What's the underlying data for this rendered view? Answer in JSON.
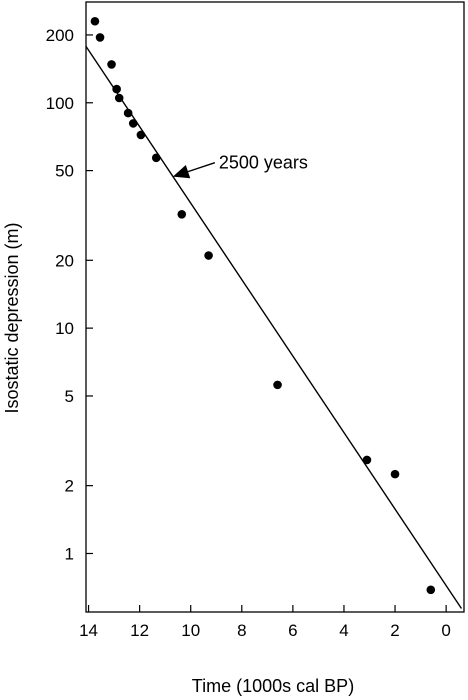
{
  "chart_data": {
    "type": "scatter",
    "title": "",
    "xlabel": "Time (1000s cal BP)",
    "ylabel": "Isostatic depression (m)",
    "xlim": [
      14.1,
      -0.7
    ],
    "x_reversed": true,
    "x_ticks": [
      14,
      12,
      10,
      8,
      6,
      4,
      2,
      0
    ],
    "x_tick_labels": [
      "14",
      "12",
      "10",
      "8",
      "6",
      "4",
      "2",
      "0"
    ],
    "ylim": [
      0.55,
      280
    ],
    "y_scale": "log",
    "y_ticks": [
      1,
      2,
      5,
      10,
      20,
      50,
      100,
      200
    ],
    "y_tick_labels": [
      "1",
      "2",
      "5",
      "10",
      "20",
      "50",
      "100",
      "200"
    ],
    "grid": false,
    "legend": "none",
    "marker_color": "#000000",
    "line_color": "#000000",
    "series": [
      {
        "points": [
          {
            "x": 13.75,
            "y": 230
          },
          {
            "x": 13.55,
            "y": 195
          },
          {
            "x": 13.1,
            "y": 148
          },
          {
            "x": 12.9,
            "y": 115
          },
          {
            "x": 12.8,
            "y": 105
          },
          {
            "x": 12.45,
            "y": 90
          },
          {
            "x": 12.25,
            "y": 81
          },
          {
            "x": 11.95,
            "y": 72
          },
          {
            "x": 11.35,
            "y": 57
          },
          {
            "x": 10.35,
            "y": 32
          },
          {
            "x": 9.3,
            "y": 21
          },
          {
            "x": 6.6,
            "y": 5.6
          },
          {
            "x": 3.1,
            "y": 2.6
          },
          {
            "x": 2.0,
            "y": 2.25
          },
          {
            "x": 0.6,
            "y": 0.69
          }
        ]
      }
    ],
    "fit_line": {
      "points": [
        {
          "x": 14.1,
          "y": 178
        },
        {
          "x": -0.6,
          "y": 0.57
        }
      ]
    },
    "annotations": [
      {
        "text": "2500 years",
        "target": {
          "x": 10.7,
          "y": 47
        }
      }
    ]
  }
}
